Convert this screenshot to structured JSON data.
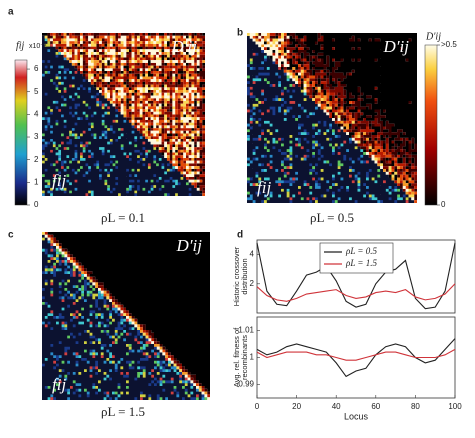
{
  "chart_data": [
    {
      "type": "heatmap",
      "panel_label": "a",
      "annotations": [
        "D′ij",
        "fij"
      ],
      "caption": "ρL = 0.1",
      "colorbar": {
        "label": "fij",
        "multiplier": "x10⁻³",
        "lim": [
          0,
          6.4
        ],
        "ticks": [
          0,
          1,
          2,
          3,
          4,
          5,
          6
        ],
        "colormap": "jet"
      }
    },
    {
      "type": "heatmap",
      "panel_label": "b",
      "annotations": [
        "D′ij",
        "fij"
      ],
      "caption": "ρL = 0.5",
      "colorbar": {
        "label": "D′ij",
        "lim": [
          0,
          0.5
        ],
        "ticks": [
          0,
          {
            "value": 0.5,
            "label": ">0.5"
          }
        ],
        "colormap": "hot"
      }
    },
    {
      "type": "heatmap",
      "panel_label": "c",
      "annotations": [
        "D′ij",
        "fij"
      ],
      "caption": "ρL = 1.5"
    },
    {
      "type": "line",
      "panel_label": "d",
      "ylabel": [
        "Historic crossover",
        "distribution"
      ],
      "x": [
        0,
        5,
        10,
        15,
        20,
        25,
        30,
        35,
        40,
        45,
        50,
        55,
        60,
        65,
        70,
        75,
        80,
        85,
        90,
        95,
        100
      ],
      "xlim": [
        0,
        100
      ],
      "ylim": [
        0,
        5
      ],
      "yticks": [
        2,
        4
      ],
      "legend": "upper center",
      "series": [
        {
          "name": "ρL = 0.5",
          "color": "#222222",
          "values": [
            4.8,
            1.5,
            0.6,
            0.5,
            1.5,
            2.6,
            2.8,
            3.2,
            2.2,
            0.8,
            0.4,
            0.6,
            2.0,
            2.8,
            3.0,
            3.6,
            1.0,
            0.3,
            0.4,
            1.5,
            4.8
          ]
        },
        {
          "name": "ρL = 1.5",
          "color": "#d0343a",
          "values": [
            1.8,
            1.2,
            0.9,
            0.8,
            1.0,
            1.3,
            1.4,
            1.5,
            1.6,
            1.2,
            1.0,
            1.1,
            1.4,
            1.5,
            1.4,
            1.6,
            1.1,
            0.9,
            1.0,
            1.3,
            2.0
          ]
        }
      ]
    },
    {
      "type": "line",
      "ylabel": [
        "Avg. rel. fitness of",
        "recombinants"
      ],
      "xlabel": "Locus",
      "x": [
        0,
        5,
        10,
        15,
        20,
        25,
        30,
        35,
        40,
        45,
        50,
        55,
        60,
        65,
        70,
        75,
        80,
        85,
        90,
        95,
        100
      ],
      "xlim": [
        0,
        100
      ],
      "xticks": [
        0,
        20,
        40,
        60,
        80,
        100
      ],
      "ylim": [
        0.985,
        1.015
      ],
      "yticks": [
        0.99,
        1,
        1.01
      ],
      "series": [
        {
          "color": "#222222",
          "values": [
            1.003,
            1.001,
            1.002,
            1.004,
            1.005,
            1.004,
            1.003,
            1.002,
            0.998,
            0.993,
            0.995,
            0.996,
            1.001,
            1.004,
            1.005,
            1.004,
            1.0,
            0.998,
            0.999,
            1.003,
            1.007
          ]
        },
        {
          "color": "#d0343a",
          "values": [
            1.002,
            1.0,
            1.001,
            1.002,
            1.002,
            1.002,
            1.001,
            1.001,
            1.0,
            0.999,
            0.999,
            1.0,
            1.001,
            1.002,
            1.002,
            1.001,
            1.0,
            1.0,
            1.0,
            1.001,
            1.003
          ]
        }
      ]
    }
  ]
}
